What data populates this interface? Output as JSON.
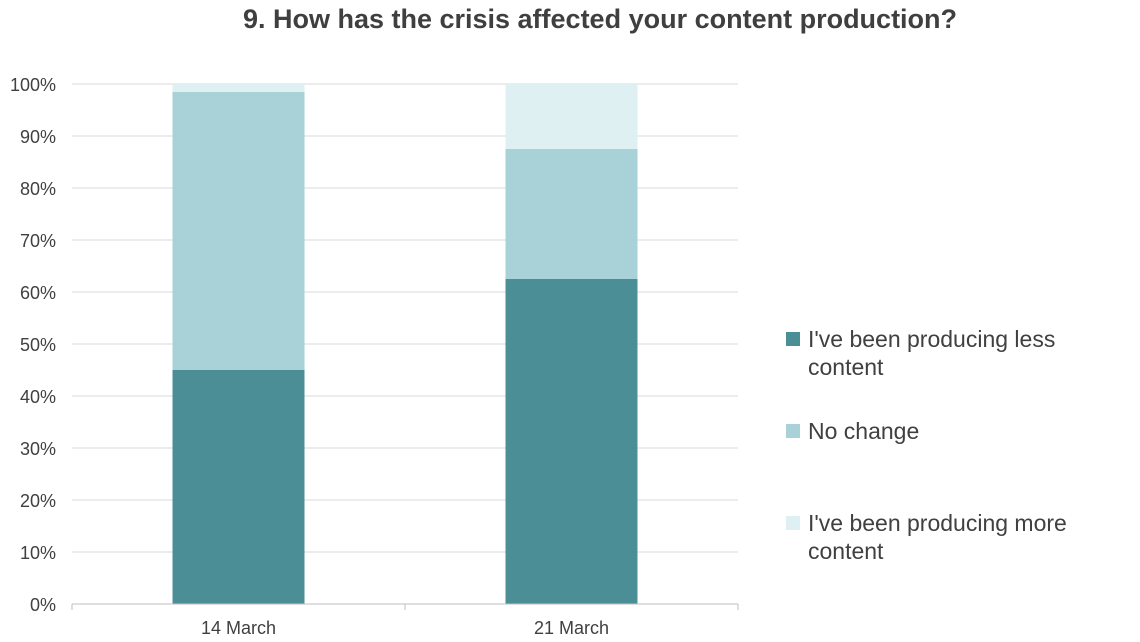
{
  "chart_data": {
    "type": "bar",
    "stacked": true,
    "title": "9. How has the crisis affected your content production?",
    "categories": [
      "14 March",
      "21 March"
    ],
    "series": [
      {
        "name": "I've been producing less content",
        "values": [
          45,
          62.5
        ],
        "color": "#4b8e96"
      },
      {
        "name": "No change",
        "values": [
          53.5,
          25
        ],
        "color": "#a9d2d8"
      },
      {
        "name": "I've been producing more content",
        "values": [
          1.5,
          12.5
        ],
        "color": "#dff0f3"
      }
    ],
    "ylim": [
      0,
      100
    ],
    "yticks": [
      "0%",
      "10%",
      "20%",
      "30%",
      "40%",
      "50%",
      "60%",
      "70%",
      "80%",
      "90%",
      "100%"
    ],
    "grid": true,
    "legend_position": "right"
  }
}
